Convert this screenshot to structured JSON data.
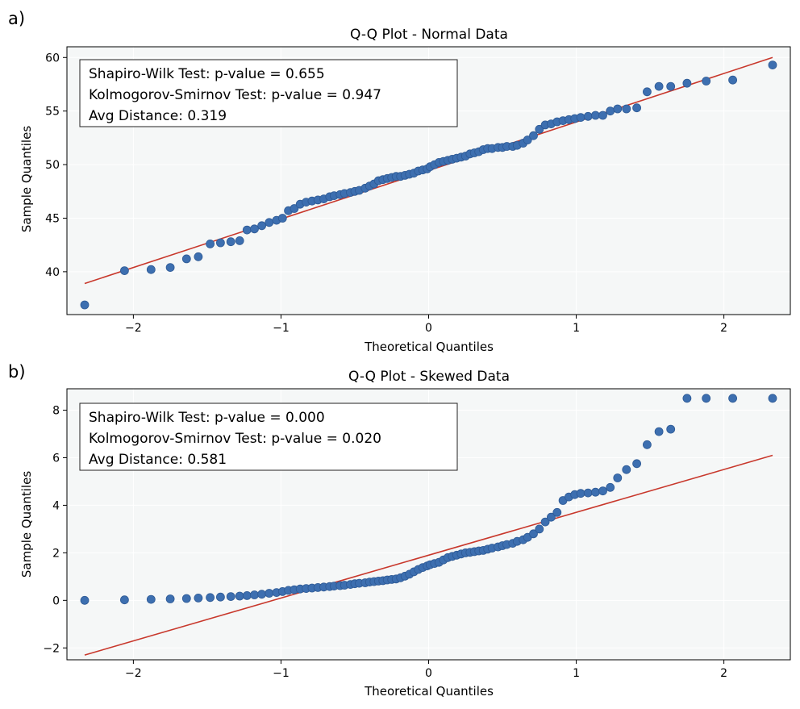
{
  "panels": [
    {
      "letter": "a)",
      "stats": [
        "Shapiro-Wilk Test: p-value = 0.655",
        "Kolmogorov-Smirnov Test: p-value = 0.947",
        "Avg Distance: 0.319"
      ]
    },
    {
      "letter": "b)",
      "stats": [
        "Shapiro-Wilk Test: p-value = 0.000",
        "Kolmogorov-Smirnov Test: p-value = 0.020",
        "Avg Distance: 0.581"
      ]
    }
  ],
  "colors": {
    "plot_bg": "#f5f7f7",
    "marker": "#3d6fb0",
    "marker_edge": "#2e5a95",
    "fit_line": "#c8382c",
    "grid": "#ffffff",
    "axis": "#000000"
  },
  "chart_data": [
    {
      "type": "scatter",
      "title": "Q-Q Plot - Normal Data",
      "xlabel": "Theoretical Quantiles",
      "ylabel": "Sample Quantiles",
      "xlim": [
        -2.45,
        2.45
      ],
      "ylim": [
        36,
        61
      ],
      "xticks": [
        -2,
        -1,
        0,
        1,
        2
      ],
      "xtick_labels": [
        "−2",
        "−1",
        "0",
        "1",
        "2"
      ],
      "yticks": [
        40,
        45,
        50,
        55,
        60
      ],
      "ytick_labels": [
        "40",
        "45",
        "50",
        "55",
        "60"
      ],
      "grid": true,
      "fit_line": {
        "x": [
          -2.33,
          2.33
        ],
        "y": [
          38.9,
          60.0
        ]
      },
      "series": [
        {
          "x": [
            -2.33,
            -2.06,
            -1.88,
            -1.75,
            -1.64,
            -1.56,
            -1.48,
            -1.41,
            -1.34,
            -1.28,
            -1.23,
            -1.18,
            -1.13,
            -1.08,
            -1.03,
            -0.99,
            -0.95,
            -0.91,
            -0.87,
            -0.83,
            -0.79,
            -0.75,
            -0.71,
            -0.67,
            -0.64,
            -0.6,
            -0.57,
            -0.53,
            -0.5,
            -0.47,
            -0.43,
            -0.4,
            -0.37,
            -0.34,
            -0.31,
            -0.28,
            -0.25,
            -0.22,
            -0.19,
            -0.16,
            -0.13,
            -0.1,
            -0.07,
            -0.04,
            -0.01,
            0.01,
            0.04,
            0.07,
            0.1,
            0.13,
            0.16,
            0.19,
            0.22,
            0.25,
            0.28,
            0.31,
            0.34,
            0.37,
            0.4,
            0.43,
            0.47,
            0.5,
            0.53,
            0.57,
            0.6,
            0.64,
            0.67,
            0.71,
            0.75,
            0.79,
            0.83,
            0.87,
            0.91,
            0.95,
            0.99,
            1.03,
            1.08,
            1.13,
            1.18,
            1.23,
            1.28,
            1.34,
            1.41,
            1.48,
            1.56,
            1.64,
            1.75,
            1.88,
            2.06,
            2.33
          ],
          "y": [
            36.9,
            40.1,
            40.2,
            40.4,
            41.2,
            41.4,
            42.6,
            42.7,
            42.8,
            42.9,
            43.9,
            44.0,
            44.3,
            44.6,
            44.8,
            45.0,
            45.7,
            45.9,
            46.3,
            46.5,
            46.6,
            46.7,
            46.8,
            47.0,
            47.1,
            47.2,
            47.3,
            47.4,
            47.5,
            47.6,
            47.8,
            48.0,
            48.2,
            48.5,
            48.6,
            48.7,
            48.8,
            48.9,
            48.9,
            49.0,
            49.1,
            49.2,
            49.4,
            49.5,
            49.6,
            49.8,
            50.0,
            50.2,
            50.3,
            50.4,
            50.5,
            50.6,
            50.7,
            50.8,
            51.0,
            51.1,
            51.2,
            51.4,
            51.5,
            51.5,
            51.6,
            51.6,
            51.7,
            51.7,
            51.8,
            52.0,
            52.3,
            52.7,
            53.3,
            53.7,
            53.8,
            54.0,
            54.1,
            54.2,
            54.3,
            54.4,
            54.5,
            54.6,
            54.6,
            55.0,
            55.2,
            55.2,
            55.3,
            56.8,
            57.3,
            57.3,
            57.6,
            57.8,
            57.9,
            59.3
          ]
        }
      ]
    },
    {
      "type": "scatter",
      "title": "Q-Q Plot - Skewed Data",
      "xlabel": "Theoretical Quantiles",
      "ylabel": "Sample Quantiles",
      "xlim": [
        -2.45,
        2.45
      ],
      "ylim": [
        -2.5,
        8.9
      ],
      "xticks": [
        -2,
        -1,
        0,
        1,
        2
      ],
      "xtick_labels": [
        "−2",
        "−1",
        "0",
        "1",
        "2"
      ],
      "yticks": [
        -2,
        0,
        2,
        4,
        6,
        8
      ],
      "ytick_labels": [
        "−2",
        "0",
        "2",
        "4",
        "6",
        "8"
      ],
      "grid": true,
      "fit_line": {
        "x": [
          -2.33,
          2.33
        ],
        "y": [
          -2.3,
          6.1
        ]
      },
      "series": [
        {
          "x": [
            -2.33,
            -2.06,
            -1.88,
            -1.75,
            -1.64,
            -1.56,
            -1.48,
            -1.41,
            -1.34,
            -1.28,
            -1.23,
            -1.18,
            -1.13,
            -1.08,
            -1.03,
            -0.99,
            -0.95,
            -0.91,
            -0.87,
            -0.83,
            -0.79,
            -0.75,
            -0.71,
            -0.67,
            -0.64,
            -0.6,
            -0.57,
            -0.53,
            -0.5,
            -0.47,
            -0.43,
            -0.4,
            -0.37,
            -0.34,
            -0.31,
            -0.28,
            -0.25,
            -0.22,
            -0.19,
            -0.16,
            -0.13,
            -0.1,
            -0.07,
            -0.04,
            -0.01,
            0.01,
            0.04,
            0.07,
            0.1,
            0.13,
            0.16,
            0.19,
            0.22,
            0.25,
            0.28,
            0.31,
            0.34,
            0.37,
            0.4,
            0.43,
            0.47,
            0.5,
            0.53,
            0.57,
            0.6,
            0.64,
            0.67,
            0.71,
            0.75,
            0.79,
            0.83,
            0.87,
            0.91,
            0.95,
            0.99,
            1.03,
            1.08,
            1.13,
            1.18,
            1.23,
            1.28,
            1.34,
            1.41,
            1.48,
            1.56,
            1.64,
            1.75,
            1.88,
            2.06,
            2.33
          ],
          "y": [
            0.0,
            0.02,
            0.04,
            0.06,
            0.08,
            0.1,
            0.12,
            0.14,
            0.16,
            0.18,
            0.2,
            0.23,
            0.26,
            0.3,
            0.33,
            0.37,
            0.42,
            0.45,
            0.48,
            0.5,
            0.52,
            0.54,
            0.56,
            0.58,
            0.6,
            0.62,
            0.64,
            0.67,
            0.7,
            0.72,
            0.74,
            0.77,
            0.79,
            0.81,
            0.83,
            0.86,
            0.88,
            0.9,
            0.95,
            1.02,
            1.1,
            1.2,
            1.3,
            1.38,
            1.45,
            1.5,
            1.55,
            1.6,
            1.7,
            1.8,
            1.85,
            1.9,
            1.95,
            2.0,
            2.02,
            2.05,
            2.08,
            2.1,
            2.15,
            2.2,
            2.25,
            2.3,
            2.35,
            2.4,
            2.48,
            2.55,
            2.65,
            2.8,
            3.0,
            3.3,
            3.5,
            3.7,
            4.2,
            4.35,
            4.45,
            4.5,
            4.52,
            4.55,
            4.6,
            4.75,
            5.15,
            5.5,
            5.75,
            6.55,
            7.1,
            7.2,
            8.5,
            8.5,
            8.5,
            8.5
          ]
        }
      ]
    }
  ]
}
